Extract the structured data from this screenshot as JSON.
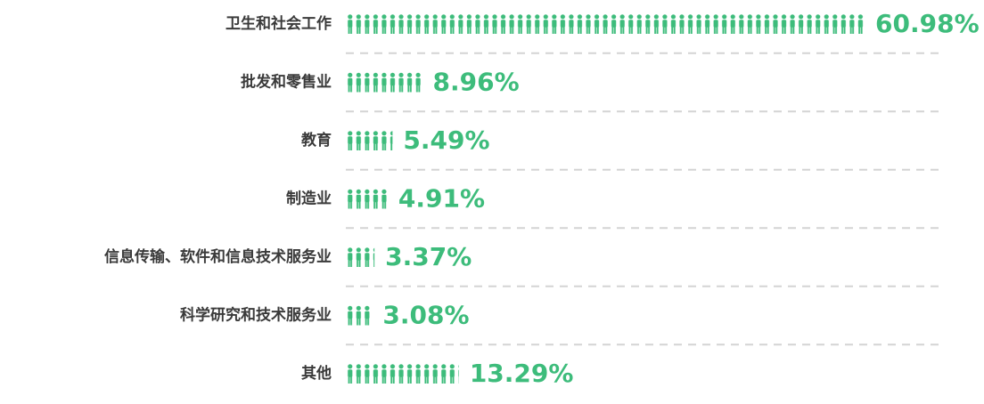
{
  "chart_data": {
    "type": "pictograph",
    "categories": [
      "卫生和社会工作",
      "批发和零售业",
      "教育",
      "制造业",
      "信息传输、软件和信息技术服务业",
      "科学研究和技术服务业",
      "其他"
    ],
    "values": [
      60.98,
      8.96,
      5.49,
      4.91,
      3.37,
      3.08,
      13.29
    ],
    "value_labels": [
      "60.98%",
      "8.96%",
      "5.49%",
      "4.91%",
      "3.37%",
      "3.08%",
      "13.29%"
    ],
    "color": "#3dbc7b"
  }
}
